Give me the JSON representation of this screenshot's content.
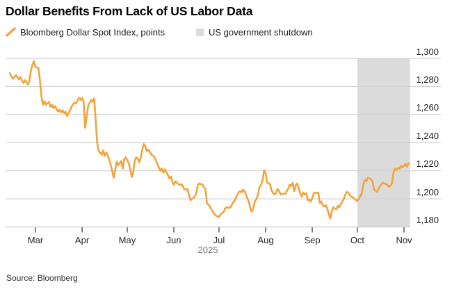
{
  "title": "Dollar Benefits From Lack of US Labor Data",
  "source": "Source: Bloomberg",
  "legend": [
    {
      "label": "Bloomberg Dollar Spot Index, points",
      "marker": "slash-icon",
      "color": "#F2A33C"
    },
    {
      "label": "US government shutdown",
      "marker": "square-swatch",
      "color": "#DBDBDB"
    }
  ],
  "colors": {
    "line": "#F2A33C",
    "band": "#DBDBDB",
    "gridline": "#D2D2D2",
    "axis_line": "#CCCCCC",
    "tick": "#3F3F3F"
  },
  "chart_data": {
    "type": "line",
    "title": "Dollar Benefits From Lack of US Labor Data",
    "series_name": "Bloomberg Dollar Spot Index, points",
    "line_color": "#F2A33C",
    "x_axis": {
      "labels": [
        "Mar",
        "Apr",
        "May",
        "Jun",
        "Jul",
        "Aug",
        "Sep",
        "Oct",
        "Nov"
      ],
      "tick_months": [
        3,
        4,
        5,
        6,
        7,
        8,
        9,
        10,
        11
      ],
      "year_label": "2025",
      "start_date": "2025-02-12",
      "end_date": "2025-11-04"
    },
    "y_axis": {
      "ticks": [
        1180,
        1200,
        1220,
        1240,
        1260,
        1280,
        1300
      ],
      "labels": [
        "1,180",
        "1,200",
        "1,220",
        "1,240",
        "1,260",
        "1,280",
        "1,300"
      ],
      "range": [
        1180,
        1300
      ],
      "grid": true,
      "side": "right"
    },
    "shaded_region": {
      "label": "US government shutdown",
      "start_date": "2025-10-01",
      "end_date": "2025-11-05",
      "color": "#DBDBDB"
    },
    "legend_position": "top-left",
    "points": [
      [
        "2025-02-12",
        1289.5
      ],
      [
        "2025-02-13",
        1287
      ],
      [
        "2025-02-14",
        1285.5
      ],
      [
        "2025-02-16",
        1288
      ],
      [
        "2025-02-18",
        1285
      ],
      [
        "2025-02-19",
        1286.5
      ],
      [
        "2025-02-21",
        1282.5
      ],
      [
        "2025-02-22",
        1284.5
      ],
      [
        "2025-02-24",
        1281.5
      ],
      [
        "2025-02-25",
        1284
      ],
      [
        "2025-02-26",
        1291.5
      ],
      [
        "2025-02-27",
        1295.5
      ],
      [
        "2025-02-28",
        1298
      ],
      [
        "2025-03-01",
        1294
      ],
      [
        "2025-03-03",
        1293
      ],
      [
        "2025-03-04",
        1284
      ],
      [
        "2025-03-05",
        1272.5
      ],
      [
        "2025-03-06",
        1267
      ],
      [
        "2025-03-07",
        1269.5
      ],
      [
        "2025-03-08",
        1267
      ],
      [
        "2025-03-10",
        1269
      ],
      [
        "2025-03-11",
        1265.5
      ],
      [
        "2025-03-12",
        1267
      ],
      [
        "2025-03-13",
        1264.5
      ],
      [
        "2025-03-14",
        1266
      ],
      [
        "2025-03-16",
        1262
      ],
      [
        "2025-03-17",
        1263.5
      ],
      [
        "2025-03-18",
        1261.5
      ],
      [
        "2025-03-19",
        1263
      ],
      [
        "2025-03-20",
        1261
      ],
      [
        "2025-03-21",
        1262
      ],
      [
        "2025-03-22",
        1259
      ],
      [
        "2025-03-24",
        1263
      ],
      [
        "2025-03-25",
        1265.5
      ],
      [
        "2025-03-26",
        1267.5
      ],
      [
        "2025-03-27",
        1268.5
      ],
      [
        "2025-03-28",
        1268
      ],
      [
        "2025-03-29",
        1270
      ],
      [
        "2025-03-30",
        1272
      ],
      [
        "2025-03-31",
        1270.5
      ],
      [
        "2025-04-01",
        1272
      ],
      [
        "2025-04-02",
        1269.5
      ],
      [
        "2025-04-03",
        1250.5
      ],
      [
        "2025-04-04",
        1258
      ],
      [
        "2025-04-05",
        1266
      ],
      [
        "2025-04-07",
        1270.5
      ],
      [
        "2025-04-08",
        1269
      ],
      [
        "2025-04-09",
        1271.5
      ],
      [
        "2025-04-10",
        1257
      ],
      [
        "2025-04-11",
        1240
      ],
      [
        "2025-04-12",
        1234
      ],
      [
        "2025-04-14",
        1231.5
      ],
      [
        "2025-04-15",
        1234.5
      ],
      [
        "2025-04-16",
        1230.5
      ],
      [
        "2025-04-17",
        1233
      ],
      [
        "2025-04-18",
        1231
      ],
      [
        "2025-04-20",
        1224.5
      ],
      [
        "2025-04-22",
        1215
      ],
      [
        "2025-04-24",
        1226.5
      ],
      [
        "2025-04-25",
        1224
      ],
      [
        "2025-04-27",
        1227
      ],
      [
        "2025-04-28",
        1221.5
      ],
      [
        "2025-04-29",
        1228
      ],
      [
        "2025-04-30",
        1229.5
      ],
      [
        "2025-05-02",
        1225.5
      ],
      [
        "2025-05-03",
        1221
      ],
      [
        "2025-05-04",
        1215.5
      ],
      [
        "2025-05-05",
        1219
      ],
      [
        "2025-05-06",
        1227.5
      ],
      [
        "2025-05-07",
        1229.5
      ],
      [
        "2025-05-08",
        1228.5
      ],
      [
        "2025-05-09",
        1226
      ],
      [
        "2025-05-10",
        1229.5
      ],
      [
        "2025-05-11",
        1235
      ],
      [
        "2025-05-12",
        1239
      ],
      [
        "2025-05-13",
        1237.5
      ],
      [
        "2025-05-14",
        1234
      ],
      [
        "2025-05-15",
        1235
      ],
      [
        "2025-05-16",
        1233.5
      ],
      [
        "2025-05-17",
        1231.5
      ],
      [
        "2025-05-19",
        1230
      ],
      [
        "2025-05-20",
        1227.5
      ],
      [
        "2025-05-21",
        1225
      ],
      [
        "2025-05-22",
        1222.5
      ],
      [
        "2025-05-23",
        1220
      ],
      [
        "2025-05-24",
        1221.5
      ],
      [
        "2025-05-25",
        1218.5
      ],
      [
        "2025-05-26",
        1221
      ],
      [
        "2025-05-27",
        1219
      ],
      [
        "2025-05-28",
        1217
      ],
      [
        "2025-05-29",
        1214.5
      ],
      [
        "2025-05-30",
        1216
      ],
      [
        "2025-05-31",
        1212
      ],
      [
        "2025-06-01",
        1210
      ],
      [
        "2025-06-02",
        1212.5
      ],
      [
        "2025-06-04",
        1210.5
      ],
      [
        "2025-06-05",
        1210
      ],
      [
        "2025-06-06",
        1210.5
      ],
      [
        "2025-06-07",
        1209
      ],
      [
        "2025-06-08",
        1206.5
      ],
      [
        "2025-06-10",
        1207
      ],
      [
        "2025-06-11",
        1203
      ],
      [
        "2025-06-12",
        1199
      ],
      [
        "2025-06-13",
        1200
      ],
      [
        "2025-06-14",
        1200.5
      ],
      [
        "2025-06-15",
        1202
      ],
      [
        "2025-06-16",
        1204.5
      ],
      [
        "2025-06-17",
        1210
      ],
      [
        "2025-06-18",
        1211
      ],
      [
        "2025-06-19",
        1210.5
      ],
      [
        "2025-06-20",
        1210
      ],
      [
        "2025-06-21",
        1208.5
      ],
      [
        "2025-06-22",
        1206.5
      ],
      [
        "2025-06-23",
        1197
      ],
      [
        "2025-06-25",
        1194.5
      ],
      [
        "2025-06-26",
        1192.5
      ],
      [
        "2025-06-27",
        1190.5
      ],
      [
        "2025-06-28",
        1189
      ],
      [
        "2025-06-29",
        1188
      ],
      [
        "2025-06-30",
        1187.5
      ],
      [
        "2025-07-01",
        1187
      ],
      [
        "2025-07-02",
        1189
      ],
      [
        "2025-07-04",
        1190.5
      ],
      [
        "2025-07-05",
        1193
      ],
      [
        "2025-07-06",
        1194
      ],
      [
        "2025-07-08",
        1193.5
      ],
      [
        "2025-07-09",
        1194.5
      ],
      [
        "2025-07-10",
        1197
      ],
      [
        "2025-07-11",
        1198
      ],
      [
        "2025-07-12",
        1200
      ],
      [
        "2025-07-14",
        1204.5
      ],
      [
        "2025-07-15",
        1205.5
      ],
      [
        "2025-07-16",
        1204.5
      ],
      [
        "2025-07-17",
        1206.5
      ],
      [
        "2025-07-18",
        1205.5
      ],
      [
        "2025-07-19",
        1203
      ],
      [
        "2025-07-20",
        1200
      ],
      [
        "2025-07-21",
        1197.5
      ],
      [
        "2025-07-22",
        1192
      ],
      [
        "2025-07-23",
        1191
      ],
      [
        "2025-07-24",
        1194.5
      ],
      [
        "2025-07-25",
        1198.5
      ],
      [
        "2025-07-26",
        1200
      ],
      [
        "2025-07-27",
        1203.5
      ],
      [
        "2025-07-28",
        1208.5
      ],
      [
        "2025-07-29",
        1210
      ],
      [
        "2025-07-30",
        1213.5
      ],
      [
        "2025-07-31",
        1220.5
      ],
      [
        "2025-08-01",
        1218.5
      ],
      [
        "2025-08-02",
        1211.5
      ],
      [
        "2025-08-03",
        1211
      ],
      [
        "2025-08-04",
        1210.5
      ],
      [
        "2025-08-05",
        1206
      ],
      [
        "2025-08-06",
        1204
      ],
      [
        "2025-08-07",
        1203
      ],
      [
        "2025-08-08",
        1204.5
      ],
      [
        "2025-08-09",
        1207
      ],
      [
        "2025-08-10",
        1205.5
      ],
      [
        "2025-08-11",
        1203
      ],
      [
        "2025-08-12",
        1203.5
      ],
      [
        "2025-08-14",
        1203.5
      ],
      [
        "2025-08-15",
        1205.5
      ],
      [
        "2025-08-16",
        1207
      ],
      [
        "2025-08-17",
        1210
      ],
      [
        "2025-08-18",
        1209
      ],
      [
        "2025-08-19",
        1211.5
      ],
      [
        "2025-08-20",
        1205.5
      ],
      [
        "2025-08-21",
        1209.5
      ],
      [
        "2025-08-22",
        1211
      ],
      [
        "2025-08-24",
        1204
      ],
      [
        "2025-08-25",
        1201.5
      ],
      [
        "2025-08-26",
        1204.5
      ],
      [
        "2025-08-27",
        1203
      ],
      [
        "2025-08-28",
        1204
      ],
      [
        "2025-08-29",
        1199
      ],
      [
        "2025-08-30",
        1199.5
      ],
      [
        "2025-08-31",
        1198
      ],
      [
        "2025-09-01",
        1200.5
      ],
      [
        "2025-09-02",
        1204
      ],
      [
        "2025-09-03",
        1204.5
      ],
      [
        "2025-09-04",
        1204
      ],
      [
        "2025-09-05",
        1204.5
      ],
      [
        "2025-09-06",
        1197
      ],
      [
        "2025-09-07",
        1198
      ],
      [
        "2025-09-08",
        1195.5
      ],
      [
        "2025-09-09",
        1194.5
      ],
      [
        "2025-09-10",
        1195.5
      ],
      [
        "2025-09-11",
        1193
      ],
      [
        "2025-09-12",
        1189
      ],
      [
        "2025-09-13",
        1186
      ],
      [
        "2025-09-14",
        1191.5
      ],
      [
        "2025-09-15",
        1194
      ],
      [
        "2025-09-16",
        1193
      ],
      [
        "2025-09-17",
        1192.5
      ],
      [
        "2025-09-18",
        1195
      ],
      [
        "2025-09-19",
        1194
      ],
      [
        "2025-09-20",
        1196.5
      ],
      [
        "2025-09-21",
        1198
      ],
      [
        "2025-09-22",
        1200
      ],
      [
        "2025-09-23",
        1203
      ],
      [
        "2025-09-24",
        1205
      ],
      [
        "2025-09-25",
        1204.5
      ],
      [
        "2025-09-26",
        1202.5
      ],
      [
        "2025-09-27",
        1201.5
      ],
      [
        "2025-09-28",
        1201
      ],
      [
        "2025-09-29",
        1200
      ],
      [
        "2025-09-30",
        1199
      ],
      [
        "2025-10-01",
        1198.5
      ],
      [
        "2025-10-02",
        1200
      ],
      [
        "2025-10-03",
        1202
      ],
      [
        "2025-10-04",
        1204
      ],
      [
        "2025-10-05",
        1210.5
      ],
      [
        "2025-10-06",
        1213.5
      ],
      [
        "2025-10-07",
        1212.5
      ],
      [
        "2025-10-08",
        1215
      ],
      [
        "2025-10-09",
        1214.5
      ],
      [
        "2025-10-10",
        1214
      ],
      [
        "2025-10-11",
        1212.5
      ],
      [
        "2025-10-12",
        1207
      ],
      [
        "2025-10-13",
        1205.5
      ],
      [
        "2025-10-14",
        1205
      ],
      [
        "2025-10-15",
        1207
      ],
      [
        "2025-10-16",
        1209
      ],
      [
        "2025-10-17",
        1210.5
      ],
      [
        "2025-10-18",
        1211.5
      ],
      [
        "2025-10-19",
        1211
      ],
      [
        "2025-10-20",
        1210.5
      ],
      [
        "2025-10-21",
        1210
      ],
      [
        "2025-10-22",
        1208.5
      ],
      [
        "2025-10-23",
        1209.5
      ],
      [
        "2025-10-24",
        1211
      ],
      [
        "2025-10-25",
        1219
      ],
      [
        "2025-10-26",
        1221.5
      ],
      [
        "2025-10-27",
        1220.5
      ],
      [
        "2025-10-28",
        1222
      ],
      [
        "2025-10-29",
        1221.5
      ],
      [
        "2025-10-30",
        1223.5
      ],
      [
        "2025-10-31",
        1222.5
      ],
      [
        "2025-11-01",
        1223.5
      ],
      [
        "2025-11-02",
        1225
      ],
      [
        "2025-11-03",
        1223
      ],
      [
        "2025-11-04",
        1225.5
      ]
    ]
  }
}
